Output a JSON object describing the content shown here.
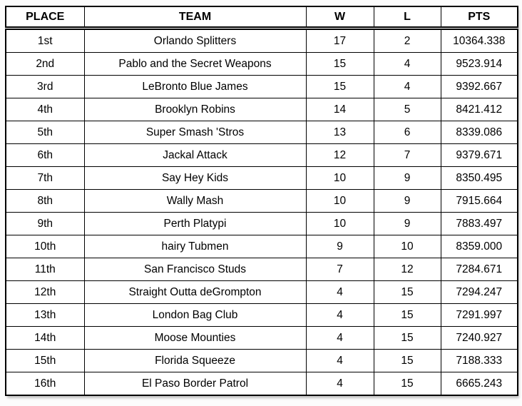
{
  "table": {
    "headers": {
      "place": "PLACE",
      "team": "TEAM",
      "wins": "W",
      "losses": "L",
      "points": "PTS"
    },
    "rows": [
      {
        "place": "1st",
        "team": "Orlando Splitters",
        "w": "17",
        "l": "2",
        "pts": "10364.338"
      },
      {
        "place": "2nd",
        "team": "Pablo and the Secret Weapons",
        "w": "15",
        "l": "4",
        "pts": "9523.914"
      },
      {
        "place": "3rd",
        "team": "LeBronto Blue James",
        "w": "15",
        "l": "4",
        "pts": "9392.667"
      },
      {
        "place": "4th",
        "team": "Brooklyn Robins",
        "w": "14",
        "l": "5",
        "pts": "8421.412"
      },
      {
        "place": "5th",
        "team": "Super Smash 'Stros",
        "w": "13",
        "l": "6",
        "pts": "8339.086"
      },
      {
        "place": "6th",
        "team": "Jackal Attack",
        "w": "12",
        "l": "7",
        "pts": "9379.671"
      },
      {
        "place": "7th",
        "team": "Say Hey Kids",
        "w": "10",
        "l": "9",
        "pts": "8350.495"
      },
      {
        "place": "8th",
        "team": "Wally Mash",
        "w": "10",
        "l": "9",
        "pts": "7915.664"
      },
      {
        "place": "9th",
        "team": "Perth Platypi",
        "w": "10",
        "l": "9",
        "pts": "7883.497"
      },
      {
        "place": "10th",
        "team": "hairy Tubmen",
        "w": "9",
        "l": "10",
        "pts": "8359.000"
      },
      {
        "place": "11th",
        "team": "San Francisco Studs",
        "w": "7",
        "l": "12",
        "pts": "7284.671"
      },
      {
        "place": "12th",
        "team": "Straight Outta deGrompton",
        "w": "4",
        "l": "15",
        "pts": "7294.247"
      },
      {
        "place": "13th",
        "team": "London Bag Club",
        "w": "4",
        "l": "15",
        "pts": "7291.997"
      },
      {
        "place": "14th",
        "team": "Moose Mounties",
        "w": "4",
        "l": "15",
        "pts": "7240.927"
      },
      {
        "place": "15th",
        "team": "Florida Squeeze",
        "w": "4",
        "l": "15",
        "pts": "7188.333"
      },
      {
        "place": "16th",
        "team": "El Paso Border Patrol",
        "w": "4",
        "l": "15",
        "pts": "6665.243"
      }
    ]
  },
  "colors": {
    "border": "#000000",
    "text": "#000000",
    "cell_background": "#ffffff",
    "page_background": "#fcfcfc"
  }
}
